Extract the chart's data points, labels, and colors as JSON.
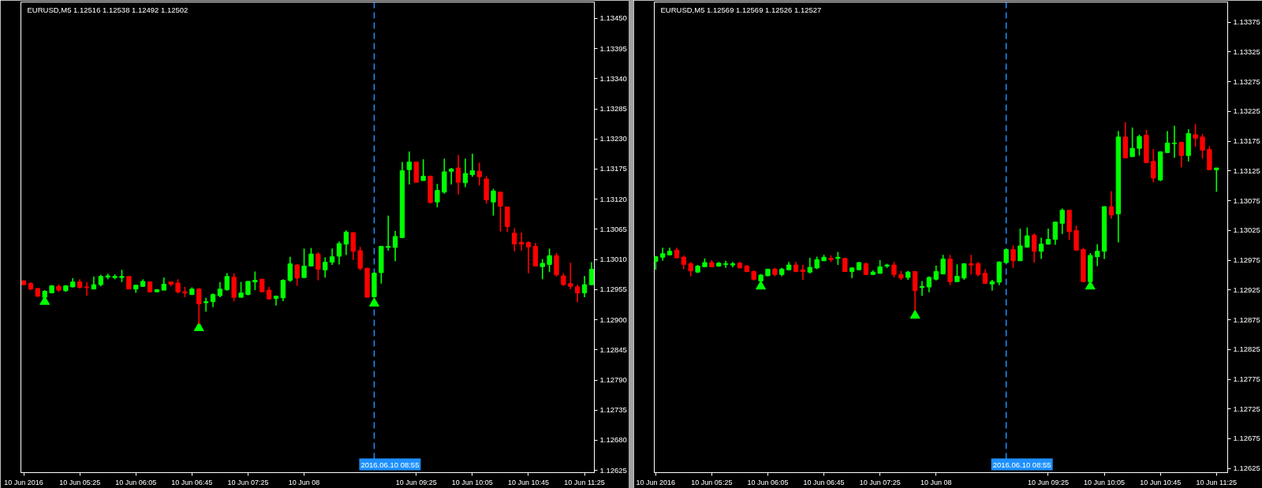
{
  "chart_data": [
    {
      "type": "candlestick",
      "title": "EURUSD,M5 1.12516 1.12538 1.12492 1.12502",
      "x": [
        "2016-06-10T04:45",
        "2016-06-10T04:50",
        "2016-06-10T04:55",
        "2016-06-10T05:00",
        "2016-06-10T05:05",
        "2016-06-10T05:10",
        "2016-06-10T05:15",
        "2016-06-10T05:20",
        "2016-06-10T05:25",
        "2016-06-10T05:30",
        "2016-06-10T05:35",
        "2016-06-10T05:40",
        "2016-06-10T05:45",
        "2016-06-10T05:50",
        "2016-06-10T05:55",
        "2016-06-10T06:00",
        "2016-06-10T06:05",
        "2016-06-10T06:10",
        "2016-06-10T06:15",
        "2016-06-10T06:20",
        "2016-06-10T06:25",
        "2016-06-10T06:30",
        "2016-06-10T06:35",
        "2016-06-10T06:40",
        "2016-06-10T06:45",
        "2016-06-10T06:50",
        "2016-06-10T06:55",
        "2016-06-10T07:00",
        "2016-06-10T07:05",
        "2016-06-10T07:10",
        "2016-06-10T07:15",
        "2016-06-10T07:20",
        "2016-06-10T07:25",
        "2016-06-10T07:30",
        "2016-06-10T07:35",
        "2016-06-10T07:40",
        "2016-06-10T07:45",
        "2016-06-10T07:50",
        "2016-06-10T07:55",
        "2016-06-10T08:00",
        "2016-06-10T08:05",
        "2016-06-10T08:10",
        "2016-06-10T08:15",
        "2016-06-10T08:20",
        "2016-06-10T08:25",
        "2016-06-10T08:30",
        "2016-06-10T08:35",
        "2016-06-10T08:40",
        "2016-06-10T08:45",
        "2016-06-10T08:50",
        "2016-06-10T08:55",
        "2016-06-10T09:00",
        "2016-06-10T09:05",
        "2016-06-10T09:10",
        "2016-06-10T09:15",
        "2016-06-10T09:20",
        "2016-06-10T09:25",
        "2016-06-10T09:30",
        "2016-06-10T09:35",
        "2016-06-10T09:40",
        "2016-06-10T09:45",
        "2016-06-10T09:50",
        "2016-06-10T09:55",
        "2016-06-10T10:00",
        "2016-06-10T10:05",
        "2016-06-10T10:10",
        "2016-06-10T10:15",
        "2016-06-10T10:20",
        "2016-06-10T10:25",
        "2016-06-10T10:30",
        "2016-06-10T10:35",
        "2016-06-10T10:40",
        "2016-06-10T10:45",
        "2016-06-10T10:50",
        "2016-06-10T10:55",
        "2016-06-10T11:00",
        "2016-06-10T11:05",
        "2016-06-10T11:10",
        "2016-06-10T11:15",
        "2016-06-10T11:20",
        "2016-06-10T11:25",
        "2016-06-10T11:30"
      ],
      "ohlc": [
        [
          1.12971,
          1.12972,
          1.12963,
          1.12964
        ],
        [
          1.12966,
          1.12969,
          1.12954,
          1.12956
        ],
        [
          1.12957,
          1.12958,
          1.12942,
          1.12943
        ],
        [
          1.12941,
          1.12954,
          1.12938,
          1.12952
        ],
        [
          1.12949,
          1.12963,
          1.12949,
          1.12962
        ],
        [
          1.12961,
          1.12965,
          1.12951,
          1.12954
        ],
        [
          1.12953,
          1.12963,
          1.12951,
          1.12962
        ],
        [
          1.1296,
          1.12976,
          1.12959,
          1.12969
        ],
        [
          1.12969,
          1.12974,
          1.12957,
          1.12959
        ],
        [
          1.1296,
          1.12969,
          1.12944,
          1.12959
        ],
        [
          1.12956,
          1.12979,
          1.12956,
          1.12964
        ],
        [
          1.12964,
          1.12982,
          1.12961,
          1.12979
        ],
        [
          1.12978,
          1.12984,
          1.12974,
          1.1298
        ],
        [
          1.12977,
          1.12983,
          1.12974,
          1.12979
        ],
        [
          1.12977,
          1.12991,
          1.12969,
          1.12979
        ],
        [
          1.12979,
          1.12979,
          1.12956,
          1.12956
        ],
        [
          1.12956,
          1.12964,
          1.12949,
          1.12963
        ],
        [
          1.12961,
          1.12974,
          1.1296,
          1.1297
        ],
        [
          1.12969,
          1.1297,
          1.1295,
          1.12951
        ],
        [
          1.12951,
          1.12956,
          1.12951,
          1.12955
        ],
        [
          1.12954,
          1.12977,
          1.12954,
          1.12965
        ],
        [
          1.12969,
          1.1297,
          1.12961,
          1.12965
        ],
        [
          1.12967,
          1.12974,
          1.12948,
          1.12951
        ],
        [
          1.12951,
          1.1296,
          1.12941,
          1.12949
        ],
        [
          1.12946,
          1.12959,
          1.12945,
          1.12956
        ],
        [
          1.12956,
          1.12958,
          1.12892,
          1.12929
        ],
        [
          1.12931,
          1.1294,
          1.12915,
          1.12933
        ],
        [
          1.12933,
          1.12948,
          1.12923,
          1.12946
        ],
        [
          1.12944,
          1.12969,
          1.12941,
          1.12956
        ],
        [
          1.12955,
          1.12985,
          1.12953,
          1.12979
        ],
        [
          1.12978,
          1.12985,
          1.12934,
          1.12941
        ],
        [
          1.12941,
          1.12969,
          1.12941,
          1.12949
        ],
        [
          1.12946,
          1.12971,
          1.12945,
          1.1297
        ],
        [
          1.12969,
          1.12988,
          1.12954,
          1.12972
        ],
        [
          1.12974,
          1.12974,
          1.1295,
          1.12951
        ],
        [
          1.12954,
          1.1296,
          1.12937,
          1.12938
        ],
        [
          1.12939,
          1.12944,
          1.12926,
          1.12943
        ],
        [
          1.1294,
          1.12974,
          1.12934,
          1.12972
        ],
        [
          1.12972,
          1.13015,
          1.12969,
          1.13002
        ],
        [
          1.13,
          1.13002,
          1.12962,
          1.12976
        ],
        [
          1.12977,
          1.1303,
          1.12977,
          1.12998
        ],
        [
          1.12998,
          1.13031,
          1.12997,
          1.1302
        ],
        [
          1.1302,
          1.13023,
          1.12972,
          1.12992
        ],
        [
          1.12991,
          1.13014,
          1.12977,
          1.13005
        ],
        [
          1.13005,
          1.1303,
          1.13,
          1.13015
        ],
        [
          1.13016,
          1.13043,
          1.13001,
          1.13039
        ],
        [
          1.13038,
          1.13063,
          1.13018,
          1.1306
        ],
        [
          1.13059,
          1.1306,
          1.13009,
          1.13025
        ],
        [
          1.13026,
          1.13033,
          1.1299,
          1.12994
        ],
        [
          1.12994,
          1.12995,
          1.12941,
          1.12941
        ],
        [
          1.12942,
          1.12987,
          1.1294,
          1.12985
        ],
        [
          1.12986,
          1.13034,
          1.12966,
          1.13034
        ],
        [
          1.13032,
          1.1309,
          1.13026,
          1.13034
        ],
        [
          1.13032,
          1.13062,
          1.13007,
          1.13052
        ],
        [
          1.1305,
          1.13188,
          1.1305,
          1.13172
        ],
        [
          1.13174,
          1.13207,
          1.13147,
          1.13188
        ],
        [
          1.13188,
          1.13188,
          1.13151,
          1.13151
        ],
        [
          1.13154,
          1.13193,
          1.13154,
          1.13162
        ],
        [
          1.13162,
          1.13163,
          1.13112,
          1.13114
        ],
        [
          1.13115,
          1.13148,
          1.13105,
          1.13136
        ],
        [
          1.13133,
          1.13194,
          1.1313,
          1.1317
        ],
        [
          1.13171,
          1.13177,
          1.13147,
          1.13175
        ],
        [
          1.13177,
          1.13201,
          1.13129,
          1.13151
        ],
        [
          1.1315,
          1.13194,
          1.13142,
          1.13167
        ],
        [
          1.13165,
          1.13203,
          1.13161,
          1.13172
        ],
        [
          1.13171,
          1.13187,
          1.13145,
          1.13161
        ],
        [
          1.13157,
          1.13162,
          1.13112,
          1.13119
        ],
        [
          1.13115,
          1.13139,
          1.1309,
          1.13135
        ],
        [
          1.13133,
          1.13134,
          1.13061,
          1.13107
        ],
        [
          1.13106,
          1.13107,
          1.1306,
          1.1307
        ],
        [
          1.13058,
          1.13067,
          1.13025,
          1.13038
        ],
        [
          1.13041,
          1.13059,
          1.13026,
          1.13038
        ],
        [
          1.13041,
          1.13043,
          1.12985,
          1.13033
        ],
        [
          1.13034,
          1.1304,
          1.12998,
          1.12998
        ],
        [
          1.12997,
          1.13011,
          1.12974,
          1.13003
        ],
        [
          1.13001,
          1.1303,
          1.12987,
          1.13017
        ],
        [
          1.13017,
          1.13022,
          1.12979,
          1.12982
        ],
        [
          1.1298,
          1.12985,
          1.12962,
          1.12964
        ],
        [
          1.12966,
          1.13004,
          1.12956,
          1.12961
        ],
        [
          1.1296,
          1.12964,
          1.12932,
          1.12949
        ],
        [
          1.12949,
          1.1298,
          1.12941,
          1.12964
        ],
        [
          1.12964,
          1.13005,
          1.12963,
          1.12992
        ]
      ],
      "colors": [
        "#ff0000",
        "#ff0000",
        "#ff0000",
        "#00ff00",
        "#00ff00",
        "#ff0000",
        "#00ff00",
        "#00ff00",
        "#ff0000",
        "#ff0000",
        "#00ff00",
        "#00ff00",
        "#00ff00",
        "#00ff00",
        "#00ff00",
        "#ff0000",
        "#00ff00",
        "#00ff00",
        "#ff0000",
        "#00ff00",
        "#00ff00",
        "#ff0000",
        "#ff0000",
        "#ff0000",
        "#00ff00",
        "#ff0000",
        "#00ff00",
        "#00ff00",
        "#00ff00",
        "#00ff00",
        "#ff0000",
        "#00ff00",
        "#00ff00",
        "#00ff00",
        "#ff0000",
        "#ff0000",
        "#00ff00",
        "#00ff00",
        "#00ff00",
        "#ff0000",
        "#00ff00",
        "#00ff00",
        "#ff0000",
        "#00ff00",
        "#00ff00",
        "#00ff00",
        "#00ff00",
        "#ff0000",
        "#ff0000",
        "#ff0000",
        "#00ff00",
        "#00ff00",
        "#00ff00",
        "#00ff00",
        "#00ff00",
        "#00ff00",
        "#ff0000",
        "#00ff00",
        "#ff0000",
        "#00ff00",
        "#00ff00",
        "#00ff00",
        "#ff0000",
        "#00ff00",
        "#00ff00",
        "#ff0000",
        "#ff0000",
        "#00ff00",
        "#ff0000",
        "#ff0000",
        "#ff0000",
        "#ff0000",
        "#ff0000",
        "#ff0000",
        "#00ff00",
        "#00ff00",
        "#ff0000",
        "#ff0000",
        "#ff0000",
        "#ff0000",
        "#00ff00",
        "#00ff00"
      ],
      "series": [
        {
          "type": "scatter",
          "x": [
            "2016-06-10T05:00",
            "2016-06-10T06:50",
            "2016-06-10T08:55"
          ],
          "values": [
            1.12933,
            1.12885,
            1.1293
          ],
          "color": "#00ff00",
          "marker": "triangle"
        }
      ],
      "xlim": [
        "2016-06-10T04:43",
        "2016-06-10T11:32"
      ],
      "ylim": [
        1.12621,
        1.1348
      ],
      "xticks": [
        {
          "value": "2016-06-10T04:45",
          "label": "10 Jun 2016"
        },
        {
          "value": "2016-06-10T05:25",
          "label": "10 Jun 05:25"
        },
        {
          "value": "2016-06-10T06:05",
          "label": "10 Jun 06:05"
        },
        {
          "value": "2016-06-10T06:45",
          "label": "10 Jun 06:45"
        },
        {
          "value": "2016-06-10T07:25",
          "label": "10 Jun 07:25"
        },
        {
          "value": "2016-06-10T08:05",
          "label": "10 Jun 08"
        },
        {
          "value": "2016-06-10T09:25",
          "label": "10 Jun 09:25"
        },
        {
          "value": "2016-06-10T10:05",
          "label": "10 Jun 10:05"
        },
        {
          "value": "2016-06-10T10:45",
          "label": "10 Jun 10:45"
        },
        {
          "value": "2016-06-10T11:25",
          "label": "10 Jun 11:25"
        }
      ],
      "yticks": [
        1.12625,
        {
          "value": 1.1268,
          "label": "1.12680"
        },
        1.12735,
        {
          "value": 1.1279,
          "label": "1.12790"
        },
        1.12845,
        {
          "value": 1.129,
          "label": "1.12900"
        },
        1.12955,
        {
          "value": 1.1301,
          "label": "1.13010"
        },
        1.13065,
        {
          "value": 1.1312,
          "label": "1.13120"
        },
        1.13175,
        {
          "value": 1.1323,
          "label": "1.13230"
        },
        1.13285,
        {
          "value": 1.1334,
          "label": "1.13340"
        },
        1.13395,
        {
          "value": 1.1345,
          "label": "1.13450"
        }
      ],
      "ref_lines": [
        {
          "axis": "x",
          "value": "2016-06-10T08:55",
          "label": "2016.06.10 08:55",
          "color": "#1e90ff",
          "line_style": "dashed"
        }
      ]
    },
    {
      "type": "candlestick",
      "title": "EURUSD,M5 1.12569 1.12569 1.12526 1.12527",
      "x": [
        "2016-06-10T04:45",
        "2016-06-10T04:50",
        "2016-06-10T04:55",
        "2016-06-10T05:00",
        "2016-06-10T05:05",
        "2016-06-10T05:10",
        "2016-06-10T05:15",
        "2016-06-10T05:20",
        "2016-06-10T05:25",
        "2016-06-10T05:30",
        "2016-06-10T05:35",
        "2016-06-10T05:40",
        "2016-06-10T05:45",
        "2016-06-10T05:50",
        "2016-06-10T05:55",
        "2016-06-10T06:00",
        "2016-06-10T06:05",
        "2016-06-10T06:10",
        "2016-06-10T06:15",
        "2016-06-10T06:20",
        "2016-06-10T06:25",
        "2016-06-10T06:30",
        "2016-06-10T06:35",
        "2016-06-10T06:40",
        "2016-06-10T06:45",
        "2016-06-10T06:50",
        "2016-06-10T06:55",
        "2016-06-10T07:00",
        "2016-06-10T07:05",
        "2016-06-10T07:10",
        "2016-06-10T07:15",
        "2016-06-10T07:20",
        "2016-06-10T07:25",
        "2016-06-10T07:30",
        "2016-06-10T07:35",
        "2016-06-10T07:40",
        "2016-06-10T07:45",
        "2016-06-10T07:50",
        "2016-06-10T07:55",
        "2016-06-10T08:00",
        "2016-06-10T08:05",
        "2016-06-10T08:10",
        "2016-06-10T08:15",
        "2016-06-10T08:20",
        "2016-06-10T08:25",
        "2016-06-10T08:30",
        "2016-06-10T08:35",
        "2016-06-10T08:40",
        "2016-06-10T08:45",
        "2016-06-10T08:50",
        "2016-06-10T08:55",
        "2016-06-10T09:00",
        "2016-06-10T09:05",
        "2016-06-10T09:10",
        "2016-06-10T09:15",
        "2016-06-10T09:20",
        "2016-06-10T09:25",
        "2016-06-10T09:30",
        "2016-06-10T09:35",
        "2016-06-10T09:40",
        "2016-06-10T09:45",
        "2016-06-10T09:50",
        "2016-06-10T09:55",
        "2016-06-10T10:00",
        "2016-06-10T10:05",
        "2016-06-10T10:10",
        "2016-06-10T10:15",
        "2016-06-10T10:20",
        "2016-06-10T10:25",
        "2016-06-10T10:30",
        "2016-06-10T10:35",
        "2016-06-10T10:40",
        "2016-06-10T10:45",
        "2016-06-10T10:50",
        "2016-06-10T10:55",
        "2016-06-10T11:00",
        "2016-06-10T11:05",
        "2016-06-10T11:10",
        "2016-06-10T11:15",
        "2016-06-10T11:20",
        "2016-06-10T11:25"
      ],
      "ohlc": [
        [
          1.12973,
          1.12982,
          1.12959,
          1.12981
        ],
        [
          1.1298,
          1.12996,
          1.12974,
          1.12986
        ],
        [
          1.12984,
          1.12996,
          1.12983,
          1.1299
        ],
        [
          1.12992,
          1.12996,
          1.12978,
          1.12979
        ],
        [
          1.1298,
          1.12983,
          1.1296,
          1.12968
        ],
        [
          1.12969,
          1.12972,
          1.12948,
          1.12957
        ],
        [
          1.12955,
          1.12967,
          1.12954,
          1.12965
        ],
        [
          1.12964,
          1.12978,
          1.12963,
          1.12971
        ],
        [
          1.12971,
          1.12975,
          1.12963,
          1.12964
        ],
        [
          1.12965,
          1.12972,
          1.12964,
          1.1297
        ],
        [
          1.12968,
          1.12974,
          1.12962,
          1.12969
        ],
        [
          1.12967,
          1.12972,
          1.12963,
          1.12969
        ],
        [
          1.1297,
          1.12972,
          1.12962,
          1.12962
        ],
        [
          1.12965,
          1.12967,
          1.12955,
          1.12956
        ],
        [
          1.12956,
          1.12958,
          1.12941,
          1.12943
        ],
        [
          1.1294,
          1.12952,
          1.12938,
          1.1295
        ],
        [
          1.12949,
          1.1296,
          1.12948,
          1.1296
        ],
        [
          1.1296,
          1.12962,
          1.12948,
          1.12951
        ],
        [
          1.12951,
          1.12962,
          1.12948,
          1.1296
        ],
        [
          1.12959,
          1.12972,
          1.12958,
          1.12967
        ],
        [
          1.12967,
          1.12972,
          1.12955,
          1.12956
        ],
        [
          1.12959,
          1.12967,
          1.12942,
          1.12956
        ],
        [
          1.12955,
          1.12979,
          1.12953,
          1.12963
        ],
        [
          1.12962,
          1.12981,
          1.1296,
          1.12976
        ],
        [
          1.12974,
          1.12984,
          1.12974,
          1.1298
        ],
        [
          1.12978,
          1.12983,
          1.12972,
          1.12976
        ],
        [
          1.12978,
          1.12989,
          1.12967,
          1.1298
        ],
        [
          1.12978,
          1.12979,
          1.12955,
          1.12956
        ],
        [
          1.12956,
          1.12963,
          1.12945,
          1.12962
        ],
        [
          1.12959,
          1.12972,
          1.12958,
          1.12971
        ],
        [
          1.12969,
          1.12971,
          1.1295,
          1.12951
        ],
        [
          1.12951,
          1.12958,
          1.1295,
          1.12955
        ],
        [
          1.12953,
          1.12975,
          1.12952,
          1.12964
        ],
        [
          1.12965,
          1.12969,
          1.12962,
          1.12967
        ],
        [
          1.12967,
          1.12972,
          1.12946,
          1.12951
        ],
        [
          1.12951,
          1.12957,
          1.12942,
          1.12945
        ],
        [
          1.12946,
          1.12957,
          1.12942,
          1.12955
        ],
        [
          1.12956,
          1.12957,
          1.12891,
          1.12924
        ],
        [
          1.12929,
          1.1294,
          1.12915,
          1.12931
        ],
        [
          1.1293,
          1.12948,
          1.12921,
          1.12946
        ],
        [
          1.12943,
          1.12966,
          1.12941,
          1.12956
        ],
        [
          1.12952,
          1.12984,
          1.12952,
          1.12977
        ],
        [
          1.12977,
          1.12984,
          1.12933,
          1.12939
        ],
        [
          1.12939,
          1.12968,
          1.12939,
          1.12948
        ],
        [
          1.12945,
          1.1297,
          1.12942,
          1.12969
        ],
        [
          1.12969,
          1.12984,
          1.12951,
          1.12967
        ],
        [
          1.12969,
          1.12972,
          1.12948,
          1.12951
        ],
        [
          1.12953,
          1.1296,
          1.12935,
          1.12936
        ],
        [
          1.12935,
          1.12942,
          1.12924,
          1.12939
        ],
        [
          1.12938,
          1.12973,
          1.12933,
          1.12972
        ],
        [
          1.12971,
          1.12994,
          1.1297,
          1.12993
        ],
        [
          1.12993,
          1.13,
          1.12962,
          1.12974
        ],
        [
          1.12974,
          1.13028,
          1.12974,
          1.12999
        ],
        [
          1.12997,
          1.1303,
          1.12996,
          1.13016
        ],
        [
          1.13017,
          1.1302,
          1.12971,
          1.1299
        ],
        [
          1.1299,
          1.13013,
          1.12977,
          1.13002
        ],
        [
          1.13002,
          1.13028,
          1.13001,
          1.1301
        ],
        [
          1.1301,
          1.1304,
          1.13001,
          1.13039
        ],
        [
          1.13037,
          1.13062,
          1.13019,
          1.13059
        ],
        [
          1.13059,
          1.13059,
          1.13009,
          1.13023
        ],
        [
          1.13025,
          1.13033,
          1.12991,
          1.12992
        ],
        [
          1.12993,
          1.12996,
          1.12939,
          1.12939
        ],
        [
          1.12939,
          1.12987,
          1.12938,
          1.12983
        ],
        [
          1.12981,
          1.13002,
          1.12965,
          1.1299
        ],
        [
          1.1299,
          1.13066,
          1.12977,
          1.13065
        ],
        [
          1.13065,
          1.13091,
          1.13045,
          1.13051
        ],
        [
          1.13053,
          1.13192,
          1.13005,
          1.13182
        ],
        [
          1.13182,
          1.13207,
          1.13147,
          1.13147
        ],
        [
          1.13149,
          1.13198,
          1.13149,
          1.13163
        ],
        [
          1.13163,
          1.13186,
          1.13151,
          1.13183
        ],
        [
          1.13185,
          1.13194,
          1.13138,
          1.13139
        ],
        [
          1.13141,
          1.13162,
          1.13106,
          1.13113
        ],
        [
          1.1311,
          1.13158,
          1.13108,
          1.13157
        ],
        [
          1.13156,
          1.13192,
          1.13155,
          1.13172
        ],
        [
          1.13171,
          1.13201,
          1.13147,
          1.13172
        ],
        [
          1.13173,
          1.13174,
          1.13131,
          1.13151
        ],
        [
          1.13151,
          1.13195,
          1.13141,
          1.13188
        ],
        [
          1.13186,
          1.13204,
          1.13166,
          1.1318
        ],
        [
          1.13182,
          1.13187,
          1.13146,
          1.1316
        ],
        [
          1.13161,
          1.13167,
          1.13127,
          1.13127
        ],
        [
          1.13127,
          1.1313,
          1.1309,
          1.1313
        ]
      ],
      "colors": [
        "#00ff00",
        "#00ff00",
        "#00ff00",
        "#ff0000",
        "#ff0000",
        "#ff0000",
        "#00ff00",
        "#00ff00",
        "#ff0000",
        "#00ff00",
        "#00ff00",
        "#00ff00",
        "#ff0000",
        "#ff0000",
        "#ff0000",
        "#00ff00",
        "#00ff00",
        "#ff0000",
        "#00ff00",
        "#00ff00",
        "#ff0000",
        "#ff0000",
        "#00ff00",
        "#00ff00",
        "#00ff00",
        "#ff0000",
        "#00ff00",
        "#ff0000",
        "#00ff00",
        "#00ff00",
        "#ff0000",
        "#00ff00",
        "#00ff00",
        "#00ff00",
        "#ff0000",
        "#ff0000",
        "#00ff00",
        "#ff0000",
        "#00ff00",
        "#00ff00",
        "#00ff00",
        "#00ff00",
        "#ff0000",
        "#00ff00",
        "#00ff00",
        "#ff0000",
        "#ff0000",
        "#ff0000",
        "#00ff00",
        "#00ff00",
        "#00ff00",
        "#ff0000",
        "#00ff00",
        "#00ff00",
        "#ff0000",
        "#00ff00",
        "#00ff00",
        "#00ff00",
        "#00ff00",
        "#ff0000",
        "#ff0000",
        "#ff0000",
        "#00ff00",
        "#00ff00",
        "#00ff00",
        "#ff0000",
        "#00ff00",
        "#ff0000",
        "#00ff00",
        "#00ff00",
        "#ff0000",
        "#ff0000",
        "#00ff00",
        "#00ff00",
        "#00ff00",
        "#ff0000",
        "#00ff00",
        "#ff0000",
        "#ff0000",
        "#ff0000",
        "#00ff00"
      ],
      "series": [
        {
          "type": "scatter",
          "x": [
            "2016-06-10T06:00",
            "2016-06-10T07:50",
            "2016-06-10T09:55"
          ],
          "values": [
            1.12931,
            1.12882,
            1.12931
          ],
          "color": "#00ff00",
          "marker": "triangle"
        }
      ],
      "xlim": [
        "2016-06-10T04:44",
        "2016-06-10T11:33"
      ],
      "ylim": [
        1.12618,
        1.13409
      ],
      "xticks": [
        {
          "value": "2016-06-10T04:45",
          "label": "10 Jun 2016"
        },
        {
          "value": "2016-06-10T05:25",
          "label": "10 Jun 05:25"
        },
        {
          "value": "2016-06-10T06:05",
          "label": "10 Jun 06:05"
        },
        {
          "value": "2016-06-10T06:45",
          "label": "10 Jun 06:45"
        },
        {
          "value": "2016-06-10T07:25",
          "label": "10 Jun 07:25"
        },
        {
          "value": "2016-06-10T08:05",
          "label": "10 Jun 08"
        },
        {
          "value": "2016-06-10T09:25",
          "label": "10 Jun 09:25"
        },
        {
          "value": "2016-06-10T10:05",
          "label": "10 Jun 10:05"
        },
        {
          "value": "2016-06-10T10:45",
          "label": "10 Jun 10:45"
        },
        {
          "value": "2016-06-10T11:25",
          "label": "10 Jun 11:25"
        }
      ],
      "yticks": [
        1.12625,
        1.12675,
        1.12725,
        1.12775,
        1.12825,
        1.12875,
        1.12925,
        1.12975,
        1.13025,
        1.13075,
        1.13125,
        1.13175,
        1.13225,
        1.13275,
        1.13325,
        1.13375
      ],
      "ref_lines": [
        {
          "axis": "x",
          "value": "2016-06-10T08:55",
          "label": "2016.06.10 08:55",
          "color": "#1e90ff",
          "line_style": "dashed"
        }
      ]
    }
  ]
}
